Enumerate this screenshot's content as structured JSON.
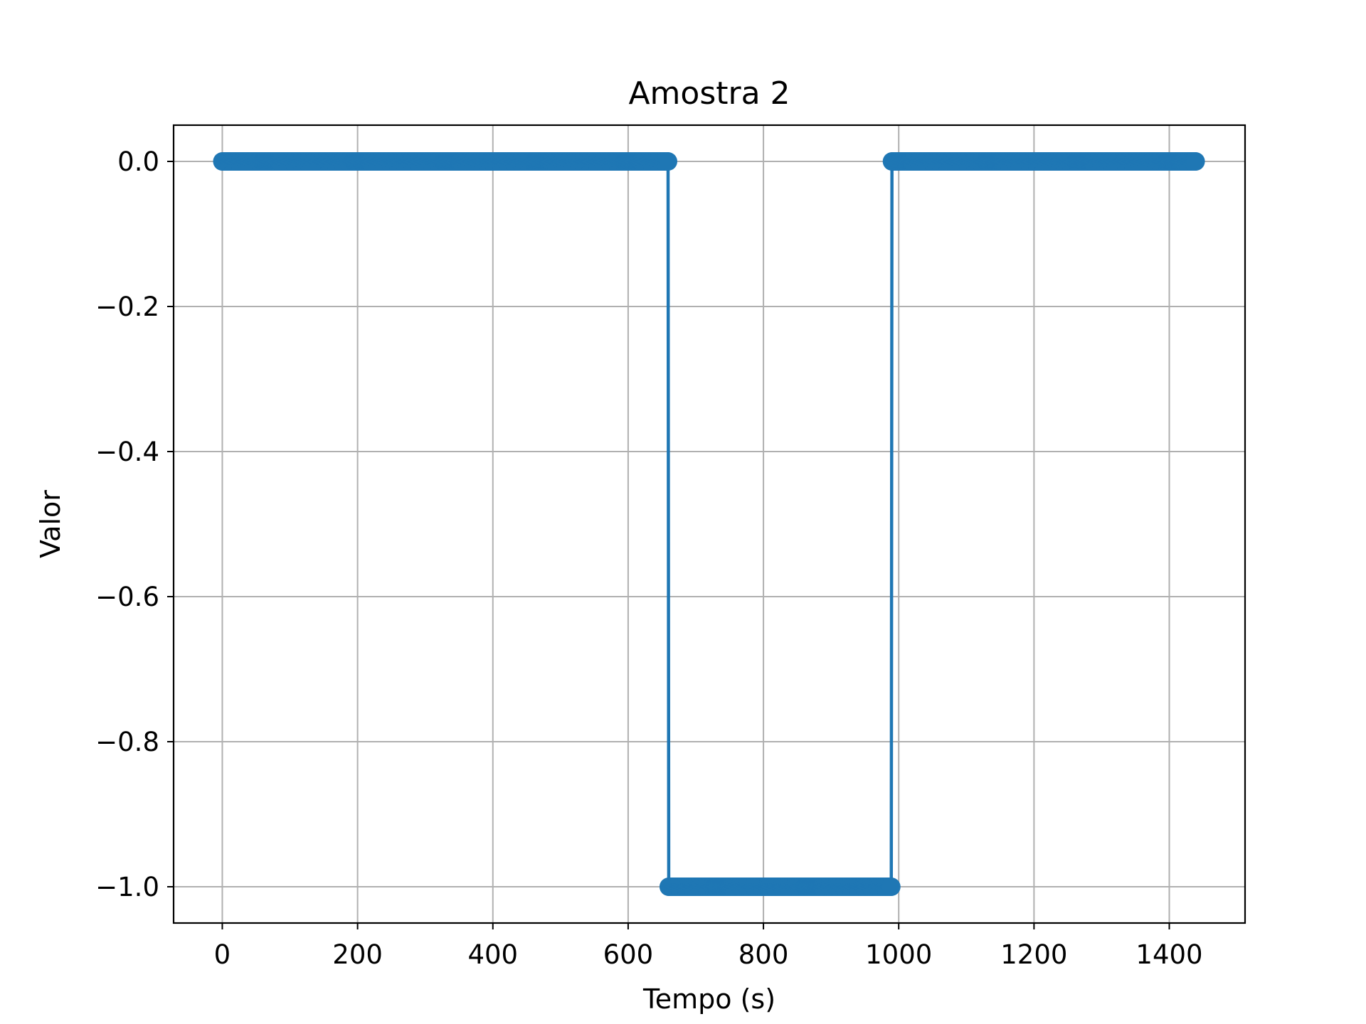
{
  "chart_data": {
    "type": "line",
    "title": "Amostra 2",
    "xlabel": "Tempo (s)",
    "ylabel": "Valor",
    "xlim": [
      -72,
      1512
    ],
    "ylim": [
      -1.05,
      0.05
    ],
    "x_ticks": [
      0,
      200,
      400,
      600,
      800,
      1000,
      1200,
      1400
    ],
    "x_tick_labels": [
      "0",
      "200",
      "400",
      "600",
      "800",
      "1000",
      "1200",
      "1400"
    ],
    "y_ticks": [
      0.0,
      -0.2,
      -0.4,
      -0.6,
      -0.8,
      -1.0
    ],
    "y_tick_labels": [
      "0.0",
      "−0.2",
      "−0.4",
      "−0.6",
      "−0.8",
      "−1.0"
    ],
    "grid": true,
    "series": [
      {
        "color": "#1f77b4",
        "x_range": [
          0,
          1439
        ],
        "x_step": 1,
        "segments": [
          {
            "x_start": 0,
            "x_end": 659,
            "y": 0.0
          },
          {
            "x_start": 660,
            "x_end": 989,
            "y": -1.0
          },
          {
            "x_start": 990,
            "x_end": 1439,
            "y": 0.0
          }
        ]
      }
    ]
  }
}
